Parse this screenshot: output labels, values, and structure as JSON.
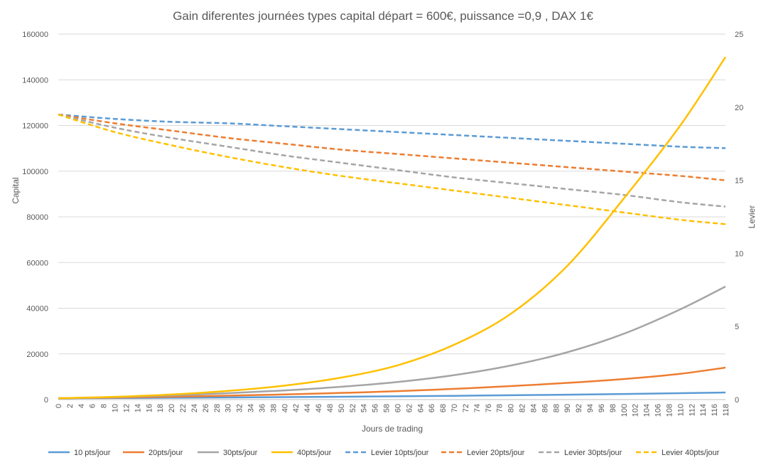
{
  "chart_data": {
    "type": "line",
    "title": "Gain diferentes journées types capital départ = 600€, puissance =0,9 , DAX 1€",
    "xlabel": "Jours de trading",
    "ylabel": "Capital",
    "y2label": "Levier",
    "xlim": [
      0,
      118
    ],
    "ylim": [
      0,
      160000
    ],
    "y2lim": [
      0,
      25
    ],
    "x_ticks": [
      "0",
      "2",
      "4",
      "6",
      "8",
      "10",
      "12",
      "14",
      "16",
      "18",
      "20",
      "22",
      "24",
      "26",
      "28",
      "30",
      "32",
      "34",
      "36",
      "38",
      "40",
      "42",
      "44",
      "46",
      "48",
      "50",
      "52",
      "54",
      "56",
      "58",
      "60",
      "62",
      "64",
      "66",
      "68",
      "70",
      "72",
      "74",
      "76",
      "78",
      "80",
      "82",
      "84",
      "86",
      "88",
      "90",
      "92",
      "94",
      "96",
      "98",
      "100",
      "102",
      "104",
      "106",
      "108",
      "110",
      "112",
      "114",
      "116",
      "118"
    ],
    "y_ticks": [
      "0",
      "20000",
      "40000",
      "60000",
      "80000",
      "100000",
      "120000",
      "140000",
      "160000"
    ],
    "y2_ticks": [
      "0",
      "5",
      "10",
      "15",
      "20",
      "25"
    ],
    "grid": true,
    "legend_position": "bottom",
    "x": [
      0,
      10,
      20,
      30,
      40,
      50,
      60,
      70,
      80,
      90,
      100,
      110,
      118
    ],
    "series": [
      {
        "name": "10 pts/jour",
        "axis": "left",
        "style": "solid",
        "color": "#5B9BD5",
        "values": [
          600,
          700,
          800,
          950,
          1100,
          1250,
          1450,
          1650,
          1900,
          2150,
          2450,
          2800,
          3100
        ]
      },
      {
        "name": "20pts/jour",
        "axis": "left",
        "style": "solid",
        "color": "#ED7D31",
        "values": [
          600,
          900,
          1250,
          1700,
          2250,
          2900,
          3700,
          4700,
          5900,
          7300,
          9000,
          11300,
          14000
        ]
      },
      {
        "name": "30pts/jour",
        "axis": "left",
        "style": "solid",
        "color": "#A5A5A5",
        "values": [
          600,
          1100,
          1800,
          2800,
          4000,
          5600,
          7700,
          10700,
          14900,
          20700,
          28800,
          39500,
          49500
        ]
      },
      {
        "name": "40pts/jour",
        "axis": "left",
        "style": "solid",
        "color": "#FFC000",
        "values": [
          600,
          1200,
          2200,
          3800,
          6100,
          9600,
          15000,
          24000,
          37500,
          58500,
          88000,
          120000,
          150000
        ]
      },
      {
        "name": "Levier 10pts/jour",
        "axis": "right",
        "style": "dashed",
        "color": "#5B9BD5",
        "values": [
          19.5,
          19.2,
          19.0,
          18.9,
          18.7,
          18.5,
          18.3,
          18.1,
          17.9,
          17.7,
          17.5,
          17.3,
          17.2
        ]
      },
      {
        "name": "Levier 20pts/jour",
        "axis": "right",
        "style": "dashed",
        "color": "#ED7D31",
        "values": [
          19.5,
          18.9,
          18.4,
          17.9,
          17.5,
          17.1,
          16.8,
          16.5,
          16.2,
          15.9,
          15.6,
          15.3,
          15.0
        ]
      },
      {
        "name": "Levier 30pts/jour",
        "axis": "right",
        "style": "dashed",
        "color": "#A5A5A5",
        "values": [
          19.5,
          18.6,
          17.9,
          17.3,
          16.7,
          16.2,
          15.7,
          15.2,
          14.8,
          14.4,
          14.0,
          13.5,
          13.2
        ]
      },
      {
        "name": "Levier 40pts/jour",
        "axis": "right",
        "style": "dashed",
        "color": "#FFC000",
        "values": [
          19.5,
          18.3,
          17.4,
          16.6,
          15.9,
          15.3,
          14.8,
          14.3,
          13.8,
          13.3,
          12.8,
          12.3,
          12.0
        ]
      }
    ]
  }
}
